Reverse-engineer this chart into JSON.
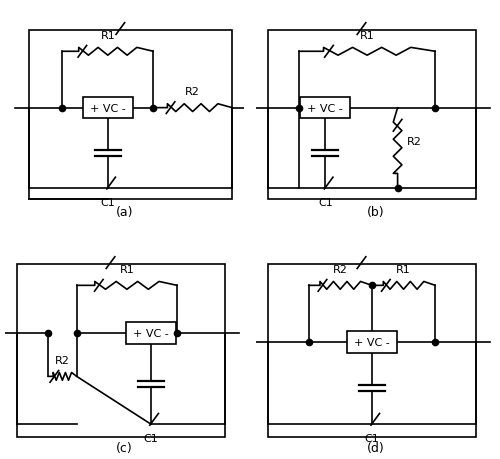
{
  "background_color": "#ffffff",
  "line_color": "#000000",
  "border_lw": 1.2,
  "wire_lw": 1.2,
  "comp_lw": 1.2,
  "zigzag_amp": 0.018,
  "zigzag_n": 6,
  "vc_label": "+ VC -",
  "labels": [
    "(a)",
    "(b)",
    "(c)",
    "(d)"
  ],
  "comp_fontsize": 8,
  "label_fontsize": 9
}
